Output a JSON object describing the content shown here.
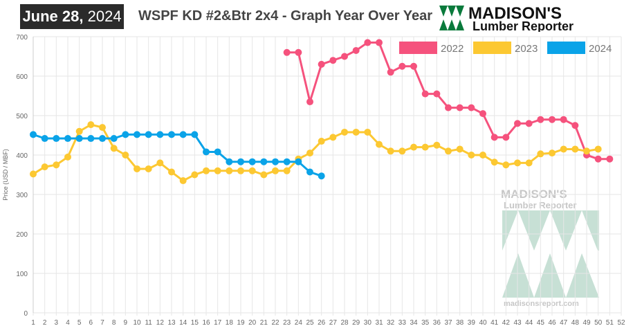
{
  "header": {
    "date_bold": "June 28,",
    "date_year": "2024",
    "title": "WSPF KD #2&Btr 2x4 - Graph Year Over Year"
  },
  "logo": {
    "line1": "MADISON'S",
    "line2": "Lumber Reporter",
    "color": "#0a7a3c"
  },
  "watermark": {
    "line1": "MADISON'S",
    "line2": "Lumber Reporter",
    "url": "madisonsreport.com"
  },
  "chart_data": {
    "type": "line",
    "title": "WSPF KD #2&Btr 2x4 - Graph Year Over Year",
    "ylabel": "Price (USD / MBF)",
    "xlabel": "",
    "xlim": [
      1,
      52
    ],
    "ylim": [
      0,
      700
    ],
    "yticks": [
      0,
      100,
      200,
      300,
      400,
      500,
      600,
      700
    ],
    "xticks": [
      1,
      2,
      3,
      4,
      5,
      6,
      7,
      8,
      9,
      10,
      11,
      12,
      13,
      14,
      15,
      16,
      17,
      18,
      19,
      20,
      21,
      22,
      23,
      24,
      25,
      26,
      27,
      28,
      29,
      30,
      31,
      32,
      33,
      34,
      35,
      36,
      37,
      38,
      39,
      40,
      41,
      42,
      43,
      44,
      45,
      46,
      47,
      48,
      49,
      50,
      51,
      52
    ],
    "grid": true,
    "legend": "top-right",
    "series": [
      {
        "name": "2022",
        "color": "#f5527d",
        "start_week": 23,
        "values": [
          660,
          660,
          535,
          630,
          640,
          650,
          665,
          685,
          685,
          610,
          625,
          625,
          555,
          555,
          520,
          520,
          520,
          505,
          445,
          445,
          480,
          480,
          490,
          490,
          490,
          475,
          400,
          390,
          390
        ]
      },
      {
        "name": "2023",
        "color": "#fcc832",
        "start_week": 1,
        "values": [
          352,
          370,
          375,
          395,
          460,
          477,
          470,
          417,
          400,
          365,
          365,
          380,
          357,
          335,
          350,
          360,
          360,
          360,
          360,
          360,
          350,
          360,
          360,
          390,
          405,
          435,
          445,
          458,
          458,
          458,
          427,
          410,
          410,
          420,
          420,
          425,
          410,
          415,
          400,
          400,
          382,
          375,
          380,
          380,
          403,
          405,
          415,
          415,
          410,
          415
        ]
      },
      {
        "name": "2024",
        "color": "#0aa3e8",
        "start_week": 1,
        "values": [
          452,
          442,
          442,
          442,
          442,
          442,
          442,
          442,
          452,
          452,
          452,
          452,
          452,
          452,
          452,
          408,
          408,
          383,
          383,
          383,
          383,
          383,
          383,
          383,
          357,
          347
        ]
      }
    ]
  }
}
